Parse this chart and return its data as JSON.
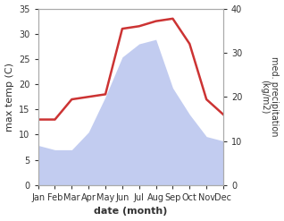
{
  "months": [
    "Jan",
    "Feb",
    "Mar",
    "Apr",
    "May",
    "Jun",
    "Jul",
    "Aug",
    "Sep",
    "Oct",
    "Nov",
    "Dec"
  ],
  "precipitation": [
    9,
    8,
    8,
    12,
    20,
    29,
    32,
    33,
    22,
    16,
    11,
    10
  ],
  "max_temp": [
    13,
    13,
    17,
    17.5,
    18,
    31,
    31.5,
    32.5,
    33,
    28,
    17,
    14
  ],
  "temp_ylim": [
    0,
    35
  ],
  "precip_ylim": [
    0,
    40
  ],
  "temp_yticks": [
    0,
    5,
    10,
    15,
    20,
    25,
    30,
    35
  ],
  "precip_yticks": [
    0,
    10,
    20,
    30,
    40
  ],
  "ylabel_left": "max temp (C)",
  "ylabel_right": "med. precipitation\n(kg/m2)",
  "xlabel": "date (month)",
  "fill_color": "#b8c4ee",
  "fill_alpha": 0.85,
  "line_color": "#cc3333",
  "line_width": 1.8,
  "background_color": "#ffffff",
  "spine_color": "#aaaaaa",
  "figsize": [
    3.18,
    2.47
  ],
  "dpi": 100
}
